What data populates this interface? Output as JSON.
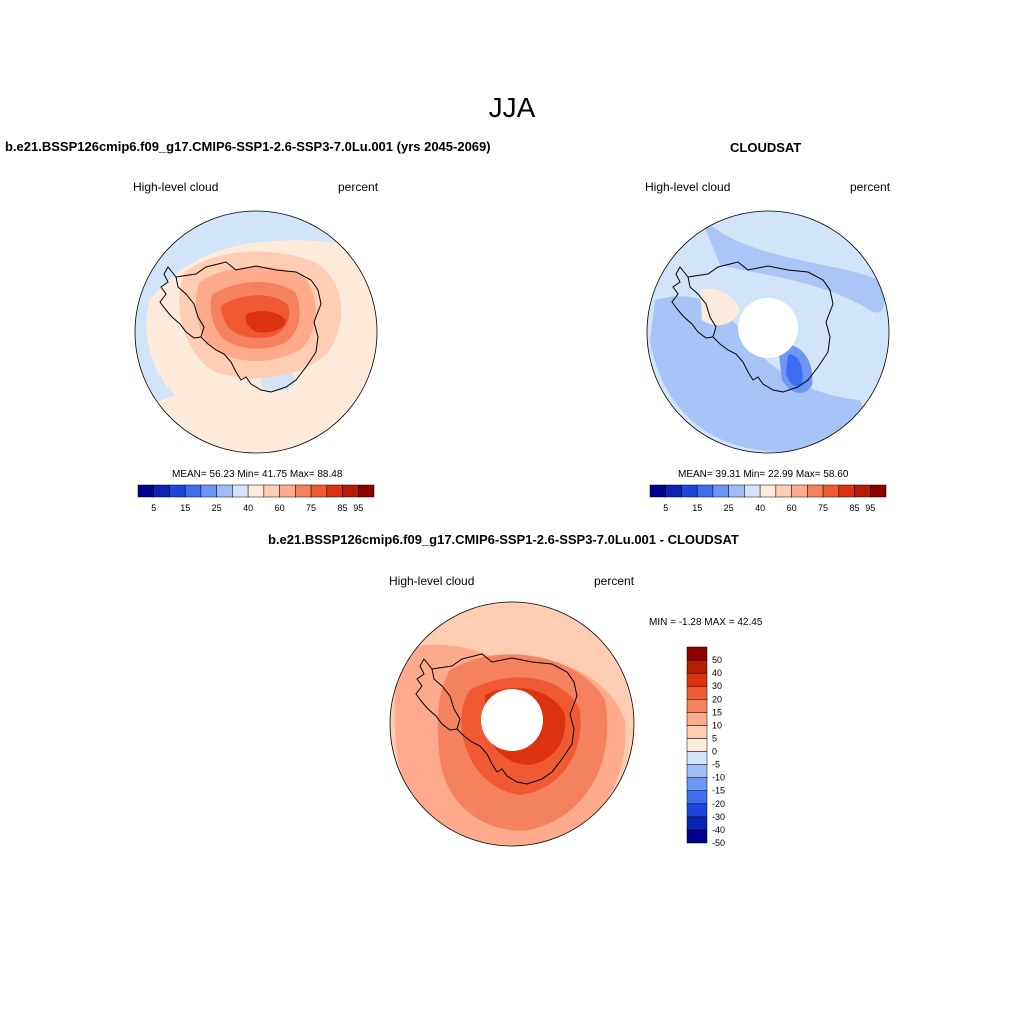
{
  "main_title": "JJA",
  "panels": [
    {
      "title": "b.e21.BSSP126cmip6.f09_g17.CMIP6-SSP1-2.6-SSP3-7.0Lu.001 (yrs 2045-2069)",
      "left_label": "High-level cloud",
      "right_label": "percent",
      "stats": "MEAN=  56.23  Min=  41.75  Max=  88.48"
    },
    {
      "title": "CLOUDSAT",
      "left_label": "High-level cloud",
      "right_label": "percent",
      "stats": "MEAN=  39.31  Min=  22.99  Max=  58.60"
    },
    {
      "title": "b.e21.BSSP126cmip6.f09_g17.CMIP6-SSP1-2.6-SSP3-7.0Lu.001 - CLOUDSAT",
      "left_label": "High-level cloud",
      "right_label": "percent",
      "stats": "MIN =  -1.28 MAX =  42.45"
    }
  ],
  "colorbar_abs": {
    "colors": [
      "#00008c",
      "#0a23b4",
      "#1e46dc",
      "#3c6ef0",
      "#6e96f5",
      "#a0bef5",
      "#d2e4fa",
      "#ffebdc",
      "#ffcdb4",
      "#ffaa8c",
      "#f5825f",
      "#f05a32",
      "#dc320f",
      "#b41e05",
      "#8c0000"
    ],
    "tick_labels": [
      "5",
      "15",
      "25",
      "40",
      "60",
      "75",
      "85",
      "95"
    ]
  },
  "colorbar_diff": {
    "colors": [
      "#00008c",
      "#0a23b4",
      "#1e46dc",
      "#3c6ef0",
      "#6e96f5",
      "#a0bef5",
      "#d2e4fa",
      "#ffebdc",
      "#ffcdb4",
      "#ffaa8c",
      "#f5825f",
      "#f05a32",
      "#dc320f",
      "#b41e05",
      "#8c0000"
    ],
    "tick_labels": [
      "50",
      "40",
      "30",
      "20",
      "15",
      "10",
      "5",
      "0",
      "-5",
      "-10",
      "-15",
      "-20",
      "-30",
      "-40",
      "-50"
    ]
  }
}
